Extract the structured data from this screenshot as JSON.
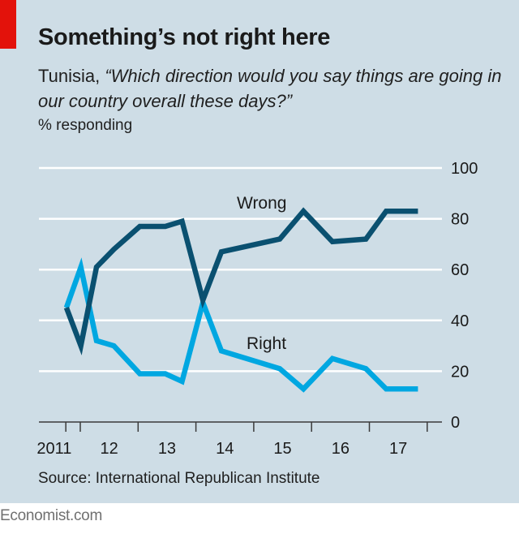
{
  "header": {
    "title": "Something’s not right here",
    "subtitle_prefix": "Tunisia, ",
    "subtitle_question": "“Which direction would you say things are going in our country overall these days?”",
    "unit": "% responding"
  },
  "footer": {
    "source": "Source: International Republican Institute",
    "brand": "Economist.com"
  },
  "colors": {
    "background": "#cedde6",
    "accent_red": "#e3120b",
    "wrong": "#0a5070",
    "right": "#00a7e1",
    "gridline": "#ffffff",
    "axis": "#3a3a3a"
  },
  "chart_data": {
    "type": "line",
    "title": "Something’s not right here",
    "subtitle": "Tunisia, “Which direction would you say things are going in our country overall these days?”",
    "ylabel": "% responding",
    "xlabel": "",
    "ylim": [
      0,
      100
    ],
    "yticks": [
      0,
      20,
      40,
      60,
      80,
      100
    ],
    "y_axis_side": "right",
    "grid": true,
    "xlim": [
      2011.7,
      2018.0
    ],
    "xtick_boundaries": [
      2011.75,
      2012,
      2013,
      2014,
      2015,
      2016,
      2017,
      2018
    ],
    "xtick_labels": [
      {
        "label": "2011",
        "center": 2011.55
      },
      {
        "label": "12",
        "center": 2012.5
      },
      {
        "label": "13",
        "center": 2013.5
      },
      {
        "label": "14",
        "center": 2014.5
      },
      {
        "label": "15",
        "center": 2015.5
      },
      {
        "label": "16",
        "center": 2016.5
      },
      {
        "label": "17",
        "center": 2017.5
      }
    ],
    "legend": "inline labels",
    "x": [
      2011.76,
      2012.01,
      2012.28,
      2012.58,
      2013.03,
      2013.47,
      2013.76,
      2014.12,
      2014.44,
      2015.45,
      2015.86,
      2016.36,
      2016.94,
      2017.29,
      2017.84
    ],
    "series": [
      {
        "name": "Wrong",
        "label": "Wrong",
        "values": [
          45,
          30,
          61,
          68,
          77,
          77,
          79,
          48,
          67,
          72,
          83,
          71,
          72,
          83,
          83
        ]
      },
      {
        "name": "Right",
        "label": "Right",
        "values": [
          45,
          61,
          32,
          30,
          19,
          19,
          16,
          47,
          28,
          21,
          13,
          25,
          21,
          13,
          13
        ]
      }
    ]
  }
}
